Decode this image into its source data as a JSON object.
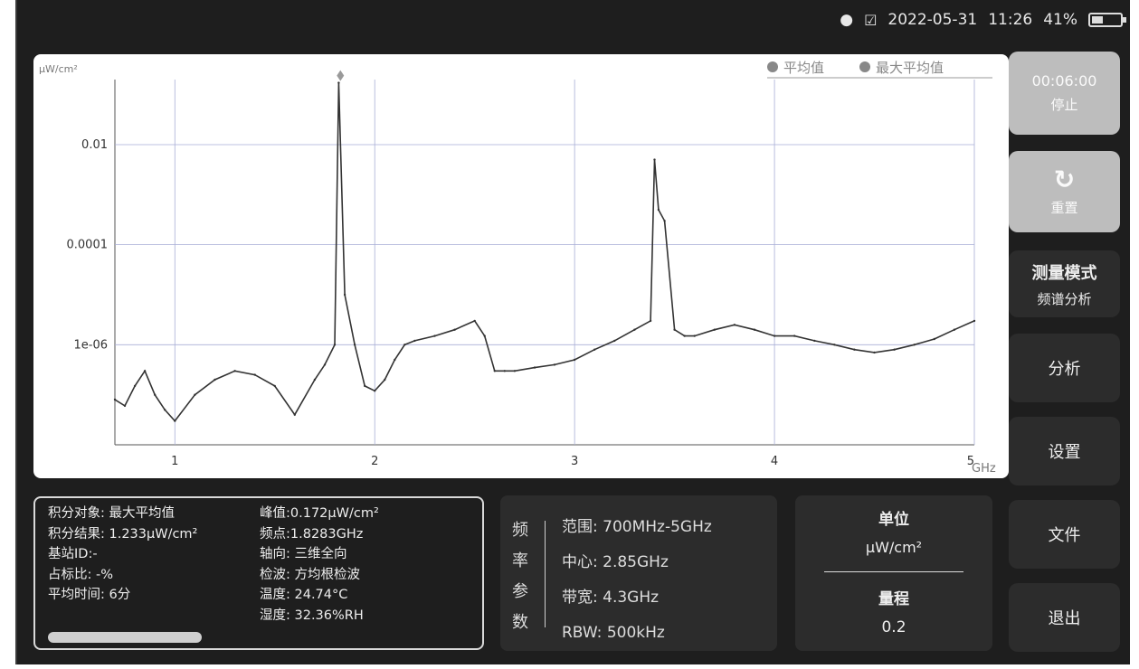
{
  "status": {
    "date": "2022-05-31",
    "time": "11:26",
    "battery": "41%",
    "battery_level": 0.41
  },
  "chart": {
    "unit_label": "µW/cm²",
    "axis_unit": "GHz",
    "legend": [
      "平均值",
      "最大平均值"
    ]
  },
  "chart_data": {
    "type": "line",
    "xlabel": "GHz",
    "ylabel": "µW/cm²",
    "log_y": true,
    "xlim": [
      0.7,
      5
    ],
    "ylim": [
      1e-08,
      0.2
    ],
    "x_ticks": [
      {
        "v": 1,
        "label": "1"
      },
      {
        "v": 2,
        "label": "2"
      },
      {
        "v": 3,
        "label": "3"
      },
      {
        "v": 4,
        "label": "4"
      },
      {
        "v": 5,
        "label": "5"
      }
    ],
    "y_ticks": [
      {
        "v": 0.01,
        "label": "0.01"
      },
      {
        "v": 0.0001,
        "label": "0.0001"
      },
      {
        "v": 1e-06,
        "label": "1e-06"
      }
    ],
    "peak_marker": {
      "x": 1.8283,
      "y": 0.172
    },
    "series": [
      {
        "name": "最大平均值",
        "x": [
          0.7,
          0.75,
          0.8,
          0.85,
          0.9,
          0.95,
          1.0,
          1.1,
          1.2,
          1.3,
          1.4,
          1.5,
          1.6,
          1.7,
          1.75,
          1.8,
          1.82,
          1.85,
          1.9,
          1.95,
          2.0,
          2.05,
          2.1,
          2.15,
          2.2,
          2.3,
          2.4,
          2.5,
          2.55,
          2.6,
          2.65,
          2.7,
          2.8,
          2.9,
          3.0,
          3.1,
          3.2,
          3.3,
          3.38,
          3.4,
          3.42,
          3.45,
          3.5,
          3.55,
          3.6,
          3.7,
          3.8,
          3.9,
          4.0,
          4.1,
          4.2,
          4.3,
          4.4,
          4.5,
          4.6,
          4.7,
          4.8,
          4.9,
          5.0
        ],
        "y": [
          8e-08,
          6e-08,
          1.5e-07,
          3e-07,
          1e-07,
          5e-08,
          3e-08,
          1e-07,
          2e-07,
          3e-07,
          2.5e-07,
          1.5e-07,
          4e-08,
          2e-07,
          4e-07,
          1e-06,
          0.172,
          1e-05,
          1e-06,
          1.5e-07,
          1.2e-07,
          2e-07,
          5e-07,
          1e-06,
          1.2e-06,
          1.5e-06,
          2e-06,
          3e-06,
          1.5e-06,
          3e-07,
          3e-07,
          3e-07,
          3.5e-07,
          4e-07,
          5e-07,
          8e-07,
          1.2e-06,
          2e-06,
          3e-06,
          0.005,
          0.0005,
          0.0003,
          2e-06,
          1.5e-06,
          1.5e-06,
          2e-06,
          2.5e-06,
          2e-06,
          1.5e-06,
          1.5e-06,
          1.2e-06,
          1e-06,
          8e-07,
          7e-07,
          8e-07,
          1e-06,
          1.3e-06,
          2e-06,
          3e-06
        ]
      }
    ]
  },
  "buttons": {
    "timer": "00:06:00",
    "stop": "停止",
    "reset": "重置",
    "mode": "测量模式",
    "mode_sub": "频谱分析",
    "analyze": "分析",
    "settings": "设置",
    "file": "文件",
    "exit": "退出"
  },
  "info": {
    "left": [
      "积分对象: 最大平均值",
      "积分结果: 1.233µW/cm²",
      "基站ID:-",
      "占标比: -%",
      "平均时间: 6分"
    ],
    "right": [
      "峰值:0.172µW/cm²",
      "频点:1.8283GHz",
      "轴向: 三维全向",
      "检波: 方均根检波",
      "温度: 24.74°C",
      "湿度: 32.36%RH"
    ]
  },
  "freq": {
    "title": [
      "频",
      "率",
      "参",
      "数"
    ],
    "lines": [
      "范围: 700MHz-5GHz",
      "中心: 2.85GHz",
      "带宽: 4.3GHz",
      "RBW: 500kHz"
    ]
  },
  "unit": {
    "label": "单位",
    "value": "µW/cm²",
    "range_label": "量程",
    "range_value": "0.2"
  },
  "colors": {
    "bg": "#1e1e1e",
    "panel": "#2c2c2c",
    "trace": "#333333",
    "grid": "#a8aed6",
    "marker": "#9a9a9a"
  }
}
